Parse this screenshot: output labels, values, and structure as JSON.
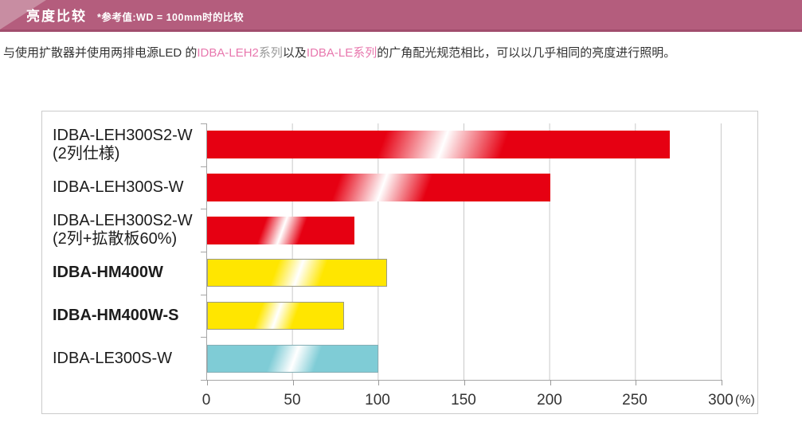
{
  "header": {
    "title": "亮度比较",
    "subtitle": "*参考值:WD = 100mm时的比较",
    "bg_color": "#b45d7d",
    "accent_light_color": "#c88da2",
    "bottom_border_color": "#a14d6d"
  },
  "intro": {
    "text_before": "与使用扩散器并使用两排电源LED 的",
    "link1": "IDBA-LEH2",
    "suffix_after_link1": "系列",
    "text_middle": "以及",
    "link2": "IDBA-LE系列",
    "text_after": "的广角配光规范相比，可以以几乎相同的亮度进行照明。",
    "link_color": "#e878ae"
  },
  "chart_data": {
    "type": "bar",
    "orientation": "horizontal",
    "title": "亮度比较 (参考值: WD = 100mm)",
    "xlabel": "",
    "ylabel": "",
    "x_unit_label": "(%)",
    "xlim": [
      0,
      300
    ],
    "x_ticks": [
      0,
      50,
      100,
      150,
      200,
      250,
      300
    ],
    "grid": true,
    "legend": null,
    "rows": [
      {
        "label": "IDBA-LEH300S2-W",
        "label_line2": "(2列仕様)",
        "value": 270,
        "color": "#e60012",
        "border_color": "",
        "bold": false
      },
      {
        "label": "IDBA-LEH300S-W",
        "label_line2": "",
        "value": 200,
        "color": "#e60012",
        "border_color": "",
        "bold": false
      },
      {
        "label": "IDBA-LEH300S2-W",
        "label_line2": "(2列+拡散板60%)",
        "value": 86,
        "color": "#e60012",
        "border_color": "",
        "bold": false
      },
      {
        "label": "IDBA-HM400W",
        "label_line2": "",
        "value": 105,
        "color": "#ffe600",
        "border_color": "#9b9b85",
        "bold": true
      },
      {
        "label": "IDBA-HM400W-S",
        "label_line2": "",
        "value": 80,
        "color": "#ffe600",
        "border_color": "#9b9b85",
        "bold": true
      },
      {
        "label": "IDBA-LE300S-W",
        "label_line2": "",
        "value": 100,
        "color": "#7fccd6",
        "border_color": "#85aeb5",
        "bold": false
      }
    ]
  }
}
